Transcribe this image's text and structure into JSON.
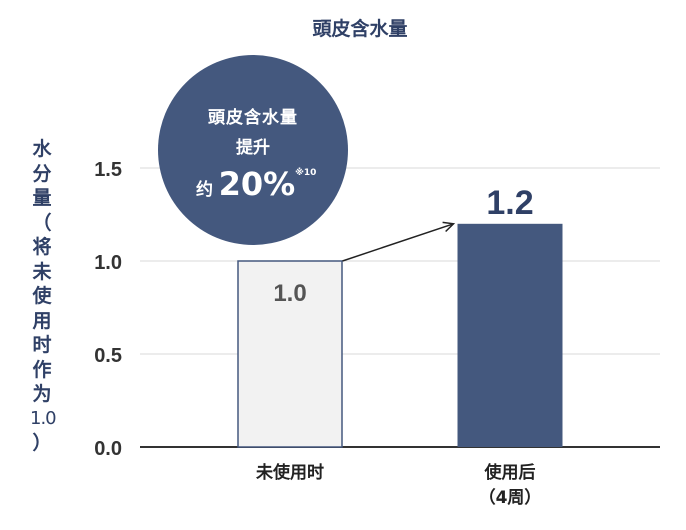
{
  "chart_data": {
    "type": "bar",
    "title": "頭皮含水量",
    "ylabel": [
      "水",
      "分",
      "量",
      "（",
      "将",
      "未",
      "使",
      "用",
      "时",
      "作",
      "为",
      "1.0",
      "）"
    ],
    "xlabel": "",
    "categories": [
      "未使用时",
      "使用后\n（4周）"
    ],
    "category_lines": [
      [
        "未使用时"
      ],
      [
        "使用后",
        "（4周）"
      ]
    ],
    "values": [
      1.0,
      1.2
    ],
    "data_labels": [
      "1.0",
      "1.2"
    ],
    "ylim": [
      0,
      1.5
    ],
    "yticks": [
      "0.0",
      "0.5",
      "1.0",
      "1.5"
    ],
    "ytick_values": [
      0,
      0.5,
      1.0,
      1.5
    ],
    "grid": true,
    "colors": {
      "before_fill": "#f2f2f2",
      "before_stroke": "#44587e",
      "after_fill": "#44587e",
      "text": "#2f4066",
      "grid": "#d9d9d9"
    },
    "annotation": {
      "line1": "頭皮含水量",
      "line2": "提升",
      "prefix": "约",
      "value": "20%",
      "note": "※10"
    }
  }
}
